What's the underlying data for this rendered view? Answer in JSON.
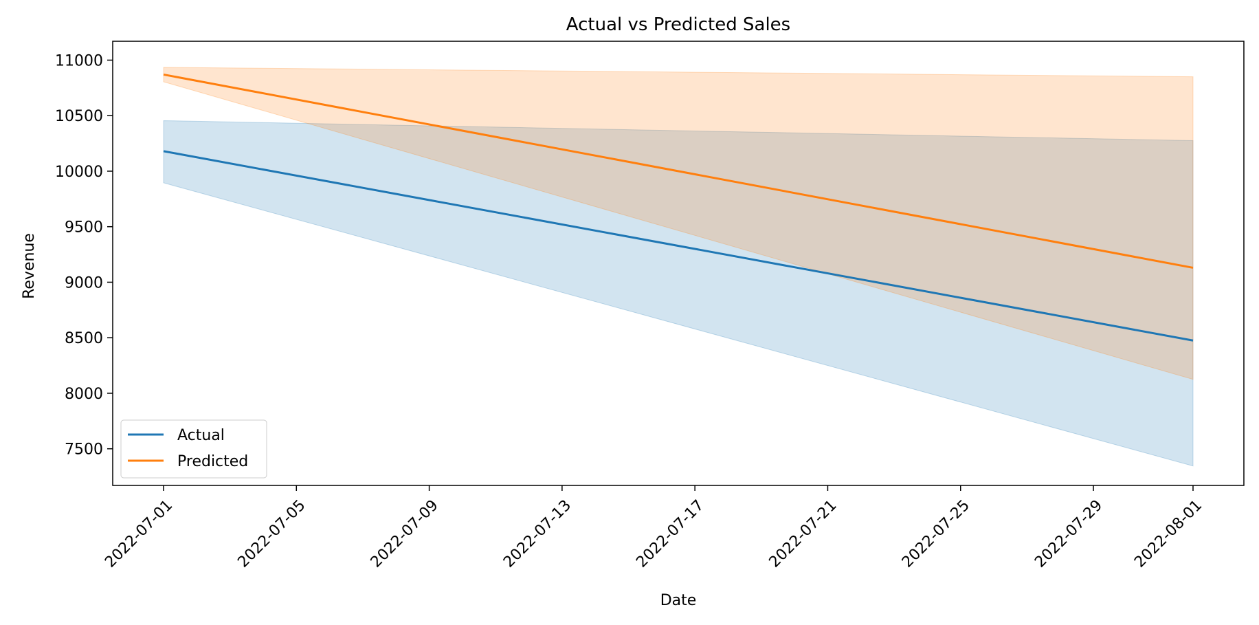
{
  "chart_data": {
    "type": "line",
    "title": "Actual vs Predicted Sales",
    "xlabel": "Date",
    "ylabel": "Revenue",
    "x": [
      "2022-07-01",
      "2022-08-01"
    ],
    "xticks": [
      "2022-07-01",
      "2022-07-05",
      "2022-07-09",
      "2022-07-13",
      "2022-07-17",
      "2022-07-21",
      "2022-07-25",
      "2022-07-29",
      "2022-08-01"
    ],
    "yticks": [
      7500,
      8000,
      8500,
      9000,
      9500,
      10000,
      10500,
      11000
    ],
    "ylim": [
      7170,
      11170
    ],
    "grid": false,
    "legend_position": "lower-left",
    "series": [
      {
        "name": "Actual",
        "color": "#1f77b4",
        "values": [
          10180,
          8475
        ],
        "band_lower": [
          9895,
          7345
        ],
        "band_upper": [
          10455,
          10275
        ]
      },
      {
        "name": "Predicted",
        "color": "#ff7f0e",
        "values": [
          10870,
          9130
        ],
        "band_lower": [
          10805,
          8125
        ],
        "band_upper": [
          10935,
          10850
        ]
      }
    ]
  }
}
